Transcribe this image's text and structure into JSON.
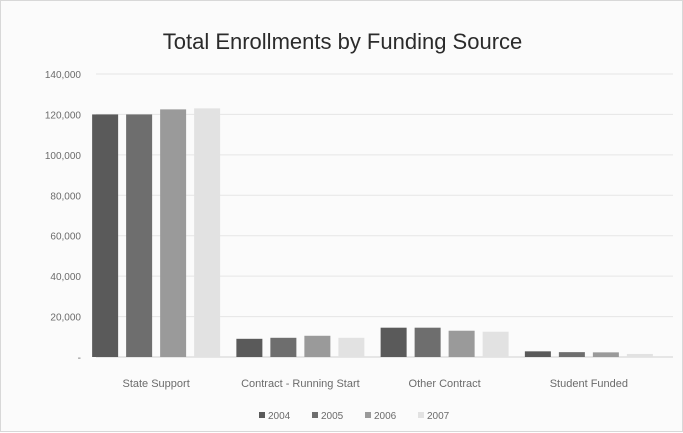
{
  "chart_data": {
    "type": "bar",
    "title": "Total Enrollments by Funding Source",
    "xlabel": "",
    "ylabel": "",
    "categories": [
      "State Support",
      "Contract - Running Start",
      "Other Contract",
      "Student Funded"
    ],
    "series": [
      {
        "name": "2004",
        "values": [
          120000,
          9000,
          14500,
          2800
        ]
      },
      {
        "name": "2005",
        "values": [
          120000,
          9500,
          14500,
          2400
        ]
      },
      {
        "name": "2006",
        "values": [
          122500,
          10500,
          13000,
          2300
        ]
      },
      {
        "name": "2007",
        "values": [
          123000,
          9500,
          12500,
          1500
        ]
      }
    ],
    "ylim": [
      0,
      140000
    ],
    "yticks": [
      "-",
      "20,000",
      "40,000",
      "60,000",
      "80,000",
      "100,000",
      "120,000",
      "140,000"
    ],
    "grid": true,
    "legend": "bottom",
    "colors": [
      "#5a5a5a",
      "#6e6e6e",
      "#9a9a9a",
      "#e2e2e2"
    ]
  }
}
